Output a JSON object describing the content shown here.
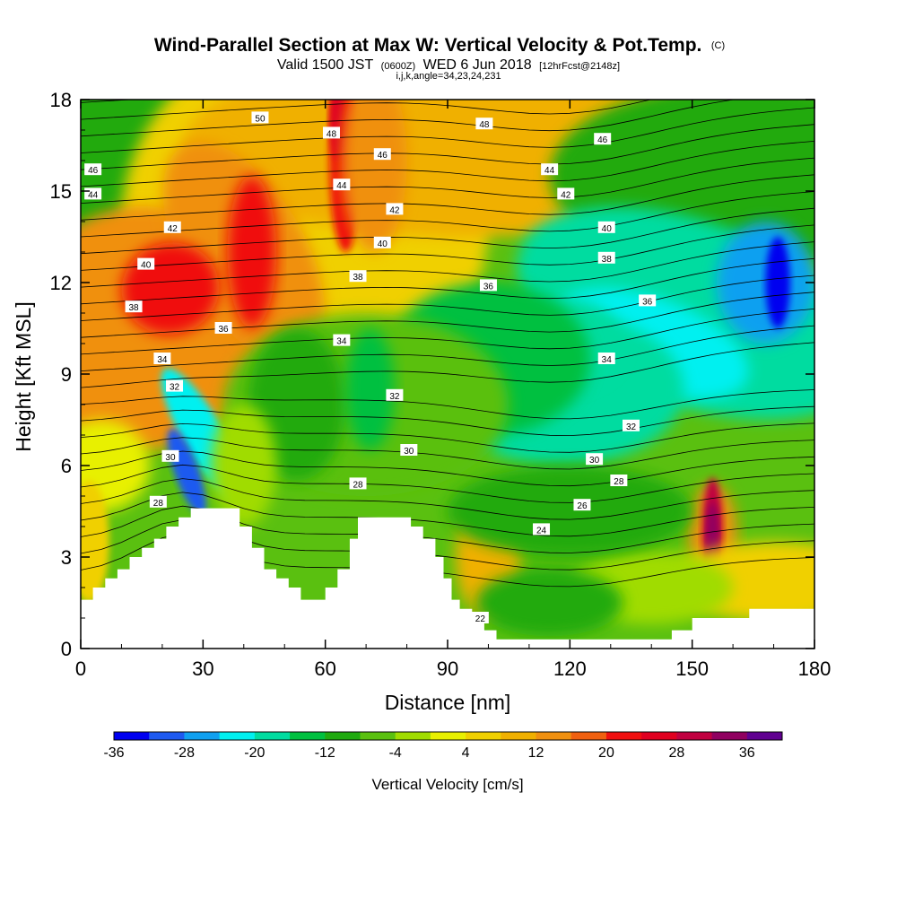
{
  "chart_data": {
    "type": "heatmap",
    "title": "Wind-Parallel Section at Max W: Vertical Velocity & Pot.Temp.",
    "title_mark": "(C)",
    "subtitle_parts": [
      "Valid 1500 JST",
      "(0600Z)",
      "WED 6 Jun 2018",
      "[12hrFcst@2148z]"
    ],
    "subtitle2": "i,j,k,angle=34,23,24,231",
    "xlabel": "Distance [nm]",
    "ylabel": "Height [Kft MSL]",
    "xlim": [
      0,
      180
    ],
    "ylim": [
      0,
      18
    ],
    "xticks": [
      0,
      30,
      60,
      90,
      120,
      150,
      180
    ],
    "yticks": [
      0,
      3,
      6,
      9,
      12,
      15,
      18
    ],
    "colorbar": {
      "title": "Vertical Velocity [cm/s]",
      "min": -36,
      "step": 4,
      "labels": [
        -36,
        -28,
        -20,
        -12,
        -4,
        4,
        12,
        20,
        28,
        36
      ],
      "colors": [
        "#0000f0",
        "#1e5af0",
        "#10a0f0",
        "#00f0f0",
        "#00dca0",
        "#00c040",
        "#20aa10",
        "#5ac010",
        "#a0dc00",
        "#e8f000",
        "#f0d000",
        "#f0b000",
        "#f09010",
        "#f06010",
        "#f01010",
        "#e00020",
        "#c00040",
        "#900060",
        "#600090"
      ]
    },
    "theta_labels": [
      {
        "x": 44,
        "y": 17.4,
        "label": "50"
      },
      {
        "x": 61.5,
        "y": 16.9,
        "label": "48"
      },
      {
        "x": 99,
        "y": 17.2,
        "label": "48"
      },
      {
        "x": 128,
        "y": 16.7,
        "label": "46"
      },
      {
        "x": 74,
        "y": 16.2,
        "label": "46"
      },
      {
        "x": 3,
        "y": 15.7,
        "label": "46"
      },
      {
        "x": 115,
        "y": 15.7,
        "label": "44"
      },
      {
        "x": 64,
        "y": 15.2,
        "label": "44"
      },
      {
        "x": 3,
        "y": 14.9,
        "label": "44"
      },
      {
        "x": 77,
        "y": 14.4,
        "label": "42"
      },
      {
        "x": 119,
        "y": 14.9,
        "label": "42"
      },
      {
        "x": 22.5,
        "y": 13.8,
        "label": "42"
      },
      {
        "x": 129,
        "y": 13.8,
        "label": "40"
      },
      {
        "x": 74,
        "y": 13.3,
        "label": "40"
      },
      {
        "x": 16,
        "y": 12.6,
        "label": "40"
      },
      {
        "x": 129,
        "y": 12.8,
        "label": "38"
      },
      {
        "x": 68,
        "y": 12.2,
        "label": "38"
      },
      {
        "x": 100,
        "y": 11.9,
        "label": "36"
      },
      {
        "x": 13,
        "y": 11.2,
        "label": "38"
      },
      {
        "x": 139,
        "y": 11.4,
        "label": "36"
      },
      {
        "x": 35,
        "y": 10.5,
        "label": "36"
      },
      {
        "x": 64,
        "y": 10.1,
        "label": "34"
      },
      {
        "x": 20,
        "y": 9.5,
        "label": "34"
      },
      {
        "x": 129,
        "y": 9.5,
        "label": "34"
      },
      {
        "x": 23,
        "y": 8.6,
        "label": "32"
      },
      {
        "x": 77,
        "y": 8.3,
        "label": "32"
      },
      {
        "x": 135,
        "y": 7.3,
        "label": "32"
      },
      {
        "x": 22,
        "y": 6.3,
        "label": "30"
      },
      {
        "x": 80.5,
        "y": 6.5,
        "label": "30"
      },
      {
        "x": 126,
        "y": 6.2,
        "label": "30"
      },
      {
        "x": 132,
        "y": 5.5,
        "label": "28"
      },
      {
        "x": 68,
        "y": 5.4,
        "label": "28"
      },
      {
        "x": 19,
        "y": 4.8,
        "label": "28"
      },
      {
        "x": 123,
        "y": 4.7,
        "label": "26"
      },
      {
        "x": 113,
        "y": 3.9,
        "label": "24"
      },
      {
        "x": 98,
        "y": 1.0,
        "label": "22"
      }
    ]
  }
}
